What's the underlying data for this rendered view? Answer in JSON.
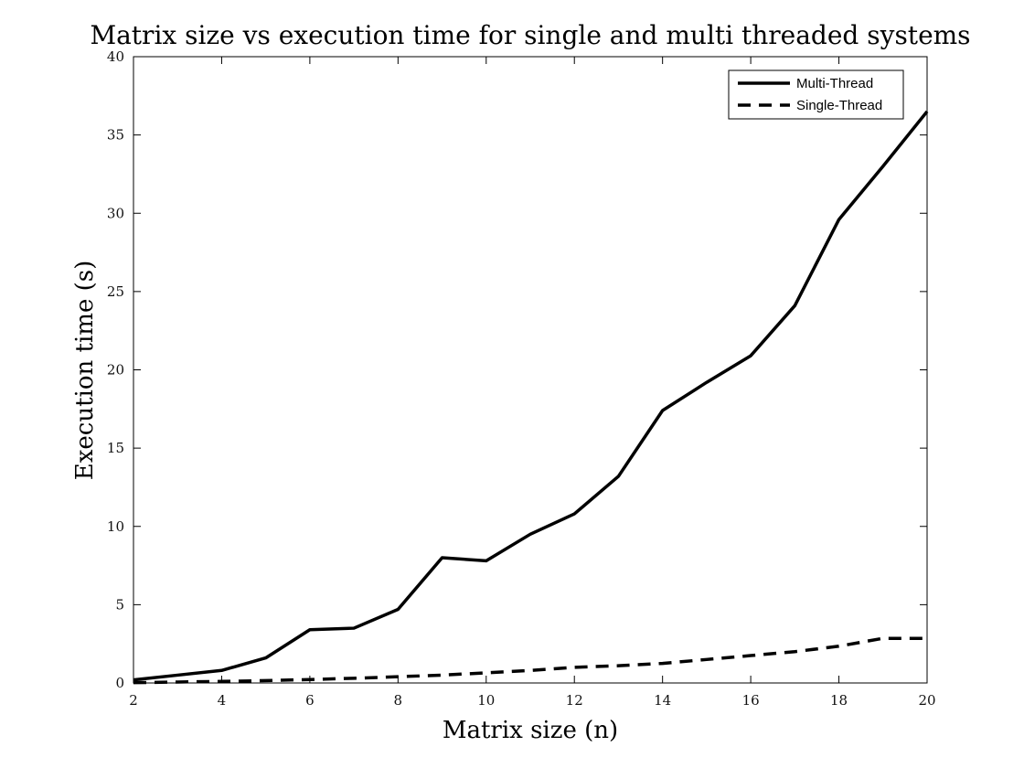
{
  "chart_data": {
    "type": "line",
    "title": "Matrix size vs execution time for single and multi threaded systems",
    "xlabel": "Matrix size (n)",
    "ylabel": "Execution time (s)",
    "xlim": [
      2,
      20
    ],
    "ylim": [
      0,
      40
    ],
    "xticks": [
      2,
      4,
      6,
      8,
      10,
      12,
      14,
      16,
      18,
      20
    ],
    "yticks": [
      0,
      5,
      10,
      15,
      20,
      25,
      30,
      35,
      40
    ],
    "grid": false,
    "legend_position": "top-right",
    "x": [
      2,
      3,
      4,
      5,
      6,
      7,
      8,
      9,
      10,
      11,
      12,
      13,
      14,
      15,
      16,
      17,
      18,
      19,
      20
    ],
    "series": [
      {
        "name": "Multi-Thread",
        "style": "solid",
        "color": "#000000",
        "values": [
          0.2,
          0.5,
          0.8,
          1.6,
          3.4,
          3.5,
          4.7,
          8.0,
          7.8,
          9.5,
          10.8,
          13.2,
          17.4,
          19.2,
          20.9,
          24.1,
          29.6,
          33.0,
          36.5
        ]
      },
      {
        "name": "Single-Thread",
        "style": "dashed",
        "color": "#000000",
        "values": [
          0.02,
          0.06,
          0.1,
          0.15,
          0.22,
          0.3,
          0.4,
          0.5,
          0.65,
          0.8,
          1.0,
          1.1,
          1.25,
          1.5,
          1.75,
          2.0,
          2.35,
          2.85,
          2.85
        ]
      }
    ]
  }
}
